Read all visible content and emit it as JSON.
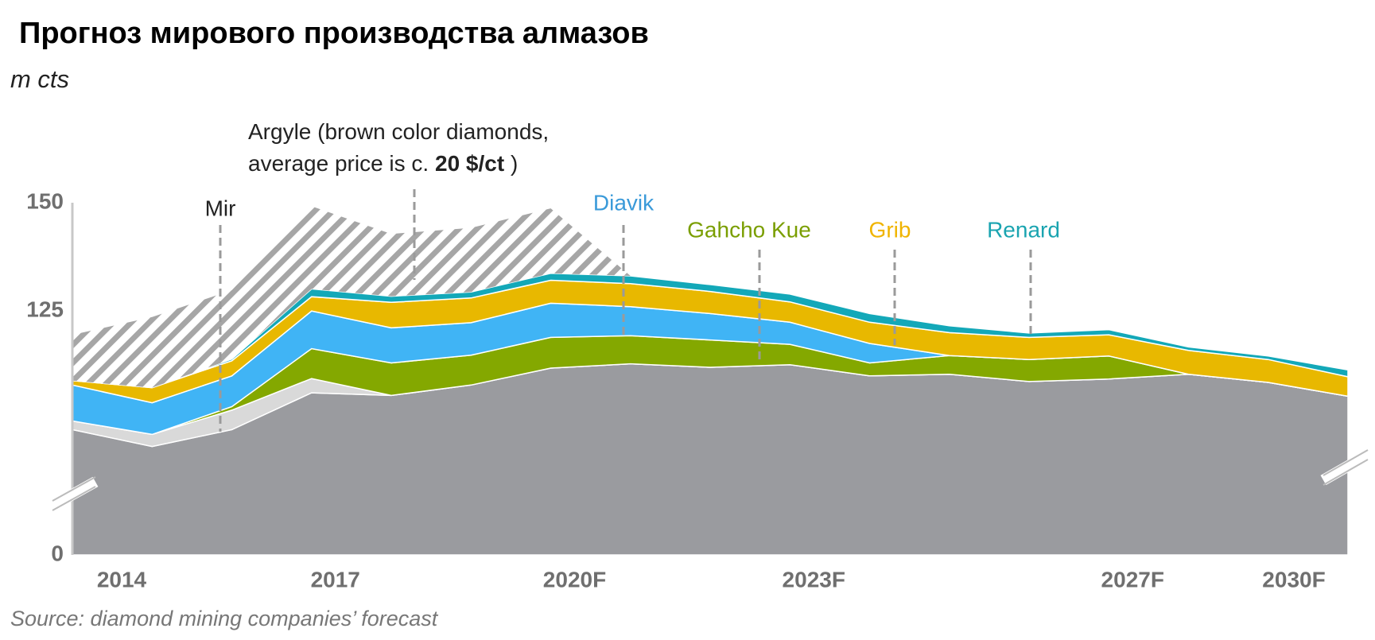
{
  "chart_data": {
    "type": "stacked_area",
    "title": "Прогноз мирового производства алмазов",
    "y_unit": "m cts",
    "source": "Source: diamond mining companies’ forecast",
    "categories": [
      "2014",
      null,
      null,
      "2017",
      null,
      null,
      "2020F",
      null,
      null,
      "2023F",
      null,
      null,
      null,
      "2027F",
      null,
      null,
      "2030F"
    ],
    "ylim": [
      0,
      150
    ],
    "yticks": [
      0,
      125,
      150
    ],
    "axis_break": 85,
    "series": [
      {
        "color": "#9a9b9f",
        "values": [
          97.6,
          93.7,
          97.6,
          106.1,
          105.5,
          107.9,
          111.8,
          112.8,
          112.0,
          112.6,
          110.0,
          110.4,
          108.7,
          109.3,
          110.4,
          108.5,
          105.3
        ]
      },
      {
        "color": "#d9d9d9",
        "values": [
          2.0,
          2.8,
          4.5,
          3.3,
          0,
          0,
          0,
          0,
          0,
          0,
          0,
          0,
          0,
          0,
          0,
          0,
          0
        ]
      },
      {
        "color": "#84a800",
        "values": [
          0,
          0,
          0.8,
          6.9,
          7.5,
          6.9,
          7.1,
          6.5,
          6.3,
          4.7,
          3.0,
          4.3,
          5.1,
          5.3,
          0,
          0,
          0
        ]
      },
      {
        "color": "#40b4f5",
        "values": [
          8.3,
          7.3,
          7.1,
          8.7,
          8.1,
          7.5,
          7.9,
          6.7,
          6.1,
          5.1,
          4.5,
          0,
          0,
          0,
          0,
          0,
          0
        ]
      },
      {
        "color": "#e8b800",
        "values": [
          1.0,
          3.5,
          3.5,
          3.3,
          5.9,
          5.7,
          5.3,
          5.3,
          5.1,
          4.7,
          4.9,
          5.3,
          5.1,
          4.9,
          5.5,
          5.3,
          4.5
        ]
      },
      {
        "color": "#13a8b8",
        "values": [
          0,
          0,
          0.4,
          1.8,
          1.4,
          1.4,
          1.6,
          1.8,
          1.6,
          1.8,
          2.0,
          1.6,
          1.0,
          1.2,
          0.8,
          0.8,
          1.6
        ]
      },
      {
        "color": "hatch",
        "values": [
          10.6,
          16.3,
          15.9,
          19.1,
          14.4,
          14.8,
          15.0,
          0,
          null,
          null,
          null,
          null,
          null,
          null,
          null,
          null,
          null
        ]
      }
    ],
    "annotations": [
      {
        "text": "Mir",
        "color": "#222222"
      },
      {
        "text": "Diavik",
        "color": "#3a9ad9"
      },
      {
        "text": "Gahcho Kue",
        "color": "#7a9e00"
      },
      {
        "text": "Grib",
        "color": "#f0b400"
      },
      {
        "text": "Renard",
        "color": "#1aa4b0"
      }
    ],
    "argyle_note": [
      "Argyle (brown color diamonds,",
      "average price is c. ",
      "20 $/ct",
      " )"
    ]
  }
}
